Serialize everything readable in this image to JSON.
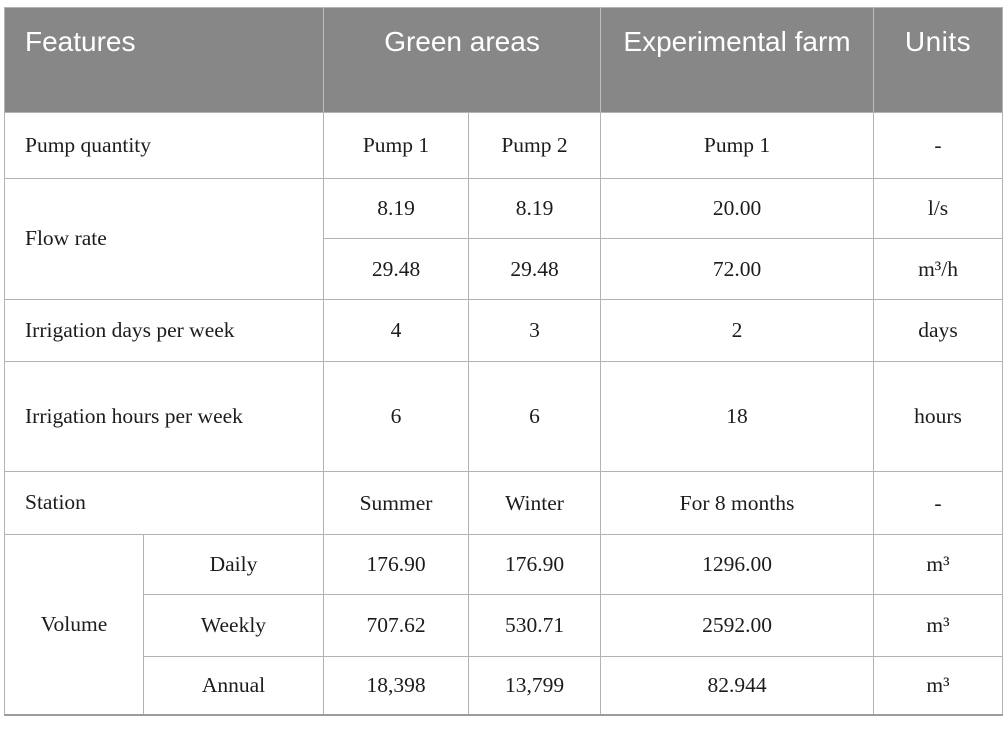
{
  "table": {
    "header": {
      "features": "Features",
      "green_areas": "Green areas",
      "experimental_farm": "Experimental farm",
      "units": "Units"
    },
    "rows": {
      "pump_quantity": {
        "label": "Pump quantity",
        "green1": "Pump 1",
        "green2": "Pump 2",
        "farm": "Pump 1",
        "units": "-"
      },
      "flow_rate": {
        "label": "Flow rate",
        "r1": {
          "green1": "8.19",
          "green2": "8.19",
          "farm": "20.00",
          "units": "l/s"
        },
        "r2": {
          "green1": "29.48",
          "green2": "29.48",
          "farm": "72.00",
          "units": "m³/h"
        }
      },
      "irrigation_days": {
        "label": "Irrigation days per week",
        "green1": "4",
        "green2": "3",
        "farm": "2",
        "units": "days"
      },
      "irrigation_hours": {
        "label": "Irrigation hours per week",
        "green1": "6",
        "green2": "6",
        "farm": "18",
        "units": "hours"
      },
      "station": {
        "label": "Station",
        "green1": "Summer",
        "green2": "Winter",
        "farm": "For 8 months",
        "units": "-"
      },
      "volume": {
        "label": "Volume",
        "daily": {
          "period": "Daily",
          "green1": "176.90",
          "green2": "176.90",
          "farm": "1296.00",
          "units": "m³"
        },
        "weekly": {
          "period": "Weekly",
          "green1": "707.62",
          "green2": "530.71",
          "farm": "2592.00",
          "units": "m³"
        },
        "annual": {
          "period": "Annual",
          "green1": "18,398",
          "green2": "13,799",
          "farm": "82.944",
          "units": "m³"
        }
      }
    }
  },
  "colors": {
    "header_bg": "#878787",
    "header_text": "#ffffff",
    "border": "#b3b3b3",
    "body_text": "#1c1c1c"
  }
}
